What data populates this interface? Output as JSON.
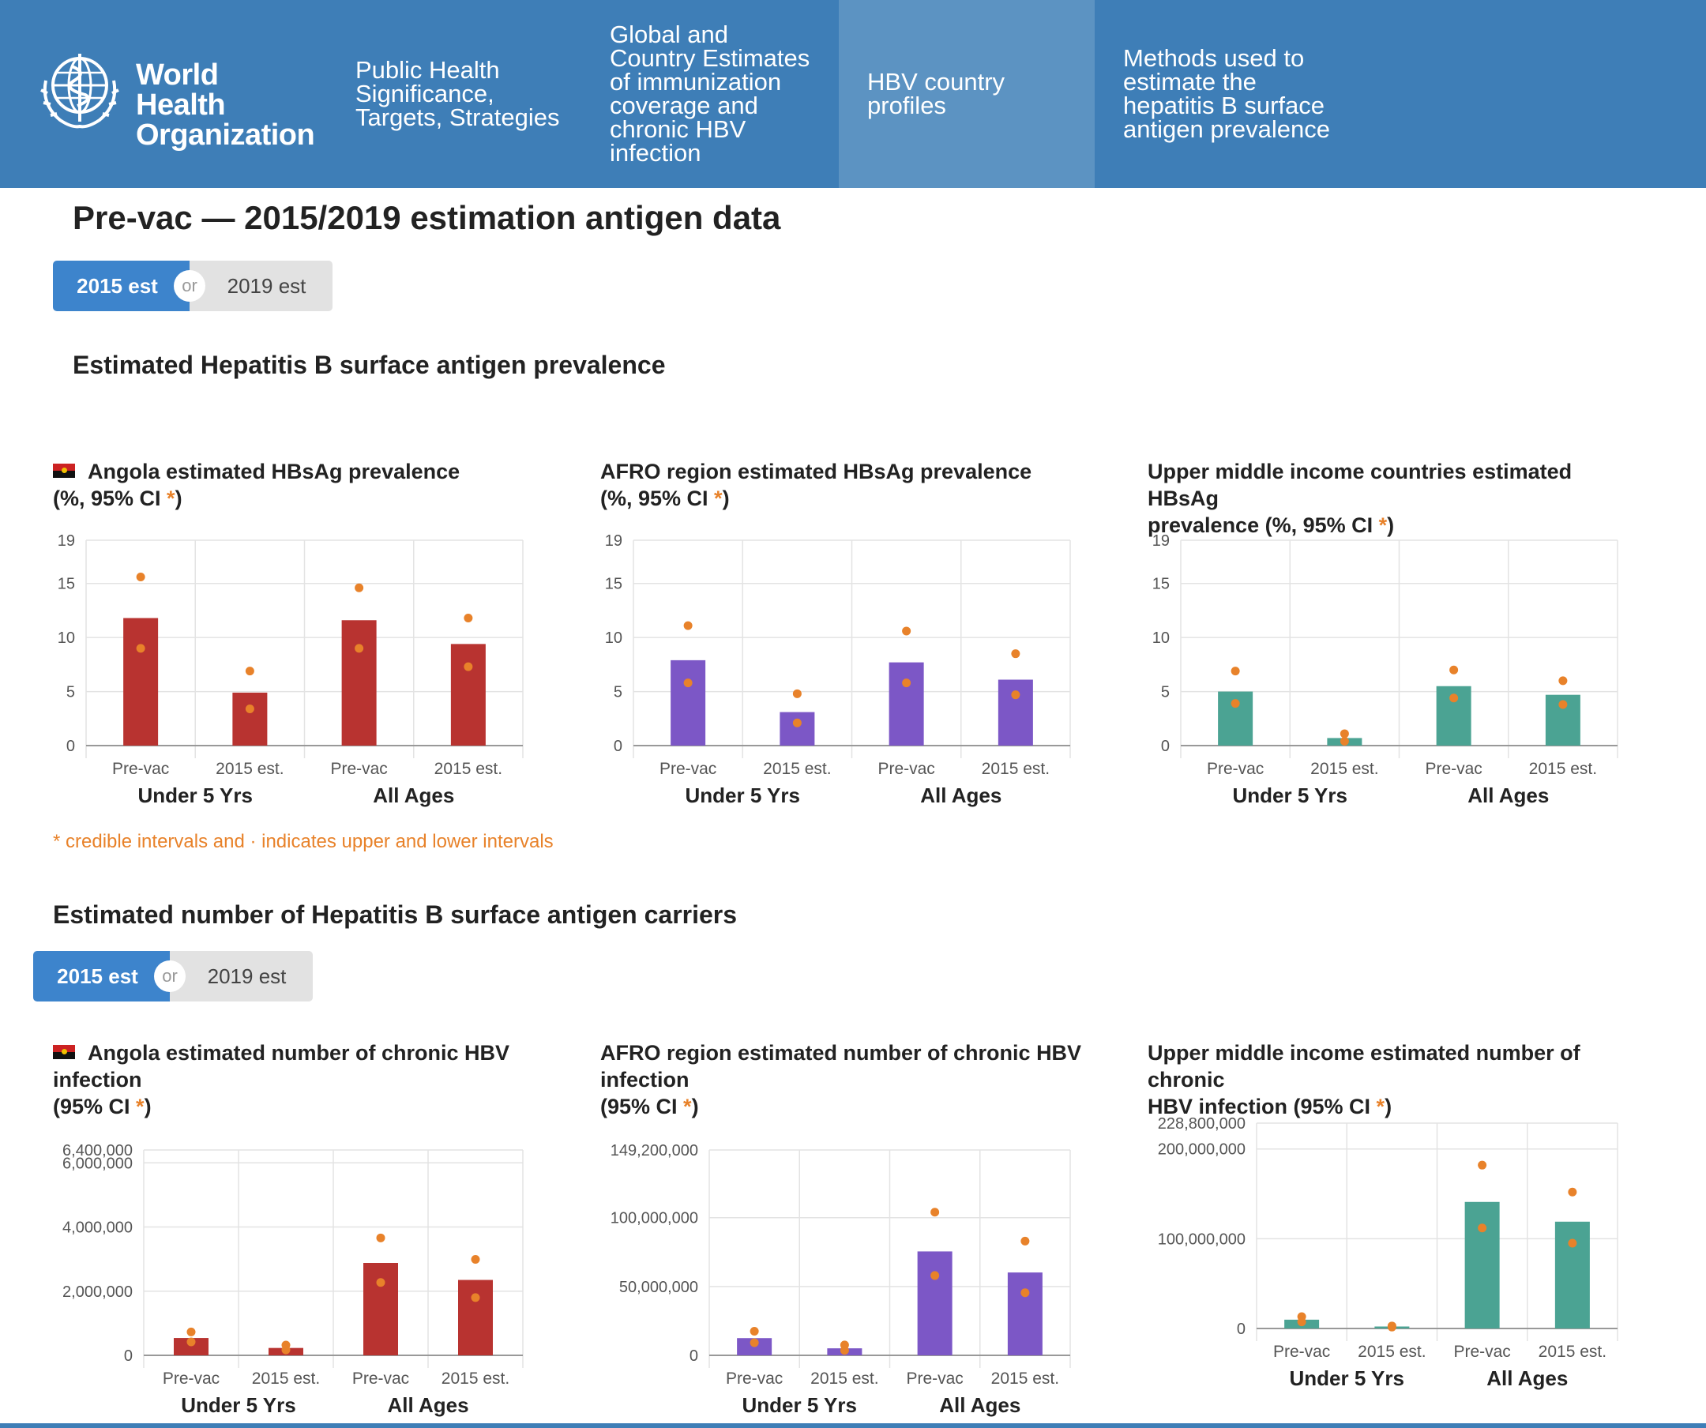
{
  "nav": {
    "logo_line1": "World Health",
    "logo_line2": "Organization",
    "items": [
      {
        "lines": [
          "Public Health",
          "Significance,",
          "Targets, Strategies"
        ]
      },
      {
        "lines": [
          "Global and",
          "Country Estimates",
          "of immunization",
          "coverage and",
          "chronic HBV",
          "infection"
        ]
      },
      {
        "lines": [
          "HBV country",
          "profiles"
        ]
      },
      {
        "lines": [
          "Methods used to",
          "estimate the",
          "hepatitis B surface",
          "antigen prevalence"
        ]
      }
    ]
  },
  "page_title": "Pre-vac — 2015/2019 estimation antigen data",
  "toggle": {
    "left": "2015 est",
    "or": "or",
    "right": "2019 est"
  },
  "section1": {
    "title": "Estimated Hepatitis B surface antigen prevalence"
  },
  "section2": {
    "title": "Estimated number of Hepatitis B surface antigen carriers"
  },
  "note": "* credible intervals and · indicates upper and lower intervals",
  "colors": {
    "angola": "#b83330",
    "afro": "#7c57c6",
    "umic": "#4ba393",
    "ci_dot": "#e8822a",
    "nav": "#3e7eb7",
    "nav_active": "#5c93c2"
  },
  "chart_data": [
    {
      "type": "bar",
      "id": "c1",
      "title_lines": [
        "Angola estimated HBsAg prevalence",
        "(%, 95% CI "
      ],
      "title_star": "*",
      "title_end": ")",
      "flag": true,
      "categories": [
        "Pre-vac",
        "2015 est.",
        "Pre-vac",
        "2015 est."
      ],
      "groups": [
        "Under 5 Yrs",
        "All Ages"
      ],
      "values": [
        11.8,
        4.9,
        11.6,
        9.4
      ],
      "upper": [
        15.6,
        6.9,
        14.6,
        11.8
      ],
      "lower": [
        9.0,
        3.4,
        9.0,
        7.3
      ],
      "ymax": 19,
      "yticks": [
        0,
        5,
        10,
        15,
        19
      ],
      "ytick_labels": [
        "0",
        "5",
        "10",
        "15",
        "19"
      ],
      "color": "#b83330"
    },
    {
      "type": "bar",
      "id": "c2",
      "title_lines": [
        "AFRO region estimated HBsAg prevalence",
        "(%, 95% CI "
      ],
      "title_star": "*",
      "title_end": ")",
      "flag": false,
      "categories": [
        "Pre-vac",
        "2015 est.",
        "Pre-vac",
        "2015 est."
      ],
      "groups": [
        "Under 5 Yrs",
        "All Ages"
      ],
      "values": [
        7.9,
        3.1,
        7.7,
        6.1
      ],
      "upper": [
        11.1,
        4.8,
        10.6,
        8.5
      ],
      "lower": [
        5.8,
        2.1,
        5.8,
        4.7
      ],
      "ymax": 19,
      "yticks": [
        0,
        5,
        10,
        15,
        19
      ],
      "ytick_labels": [
        "0",
        "5",
        "10",
        "15",
        "19"
      ],
      "color": "#7c57c6"
    },
    {
      "type": "bar",
      "id": "c3",
      "title_lines": [
        "Upper middle income countries estimated HBsAg",
        "prevalence (%, 95% CI "
      ],
      "title_star": "*",
      "title_end": ")",
      "flag": false,
      "categories": [
        "Pre-vac",
        "2015 est.",
        "Pre-vac",
        "2015 est."
      ],
      "groups": [
        "Under 5 Yrs",
        "All Ages"
      ],
      "values": [
        5.0,
        0.7,
        5.5,
        4.7
      ],
      "upper": [
        6.9,
        1.1,
        7.0,
        6.0
      ],
      "lower": [
        3.9,
        0.4,
        4.4,
        3.8
      ],
      "ymax": 19,
      "yticks": [
        0,
        5,
        10,
        15,
        19
      ],
      "ytick_labels": [
        "0",
        "5",
        "10",
        "15",
        "19"
      ],
      "color": "#4ba393"
    },
    {
      "type": "bar",
      "id": "c4",
      "title_lines": [
        "Angola estimated number of chronic HBV",
        "infection",
        "(95% CI "
      ],
      "title_star": "*",
      "title_end": ")",
      "flag": true,
      "categories": [
        "Pre-vac",
        "2015 est.",
        "Pre-vac",
        "2015 est."
      ],
      "groups": [
        "Under 5 Yrs",
        "All Ages"
      ],
      "values": [
        540000,
        230000,
        2880000,
        2350000
      ],
      "upper": [
        730000,
        320000,
        3660000,
        2990000
      ],
      "lower": [
        420000,
        170000,
        2270000,
        1800000
      ],
      "ymax": 6400000,
      "yticks": [
        0,
        2000000,
        4000000,
        6000000,
        6400000
      ],
      "ytick_labels": [
        "0",
        "2,000,000",
        "4,000,000",
        "6,000,000",
        "6,400,000"
      ],
      "color": "#b83330"
    },
    {
      "type": "bar",
      "id": "c5",
      "title_lines": [
        "AFRO region estimated number of chronic HBV",
        "infection",
        "(95% CI "
      ],
      "title_star": "*",
      "title_end": ")",
      "flag": false,
      "categories": [
        "Pre-vac",
        "2015 est.",
        "Pre-vac",
        "2015 est."
      ],
      "groups": [
        "Under 5 Yrs",
        "All Ages"
      ],
      "values": [
        12500000,
        5100000,
        75500000,
        60200000
      ],
      "upper": [
        17500000,
        7500000,
        104000000,
        83000000
      ],
      "lower": [
        9200000,
        3600000,
        58000000,
        45500000
      ],
      "ymax": 149200000,
      "yticks": [
        0,
        50000000,
        100000000,
        149200000
      ],
      "ytick_labels": [
        "0",
        "50,000,000",
        "100,000,000",
        "149,200,000"
      ],
      "color": "#7c57c6"
    },
    {
      "type": "bar",
      "id": "c6",
      "title_lines": [
        "Upper middle income estimated number of chronic",
        "HBV infection (95% CI "
      ],
      "title_star": "*",
      "title_end": ")",
      "flag": false,
      "categories": [
        "Pre-vac",
        "2015 est.",
        "Pre-vac",
        "2015 est."
      ],
      "groups": [
        "Under 5 Yrs",
        "All Ages"
      ],
      "values": [
        9800000,
        2200000,
        141000000,
        119000000
      ],
      "upper": [
        13200000,
        2800000,
        182000000,
        152000000
      ],
      "lower": [
        7400000,
        1600000,
        112000000,
        95000000
      ],
      "ymax": 228800000,
      "yticks": [
        0,
        100000000,
        200000000,
        228800000
      ],
      "ytick_labels": [
        "0",
        "100,000,000",
        "200,000,000",
        "228,800,000"
      ],
      "color": "#4ba393"
    }
  ]
}
